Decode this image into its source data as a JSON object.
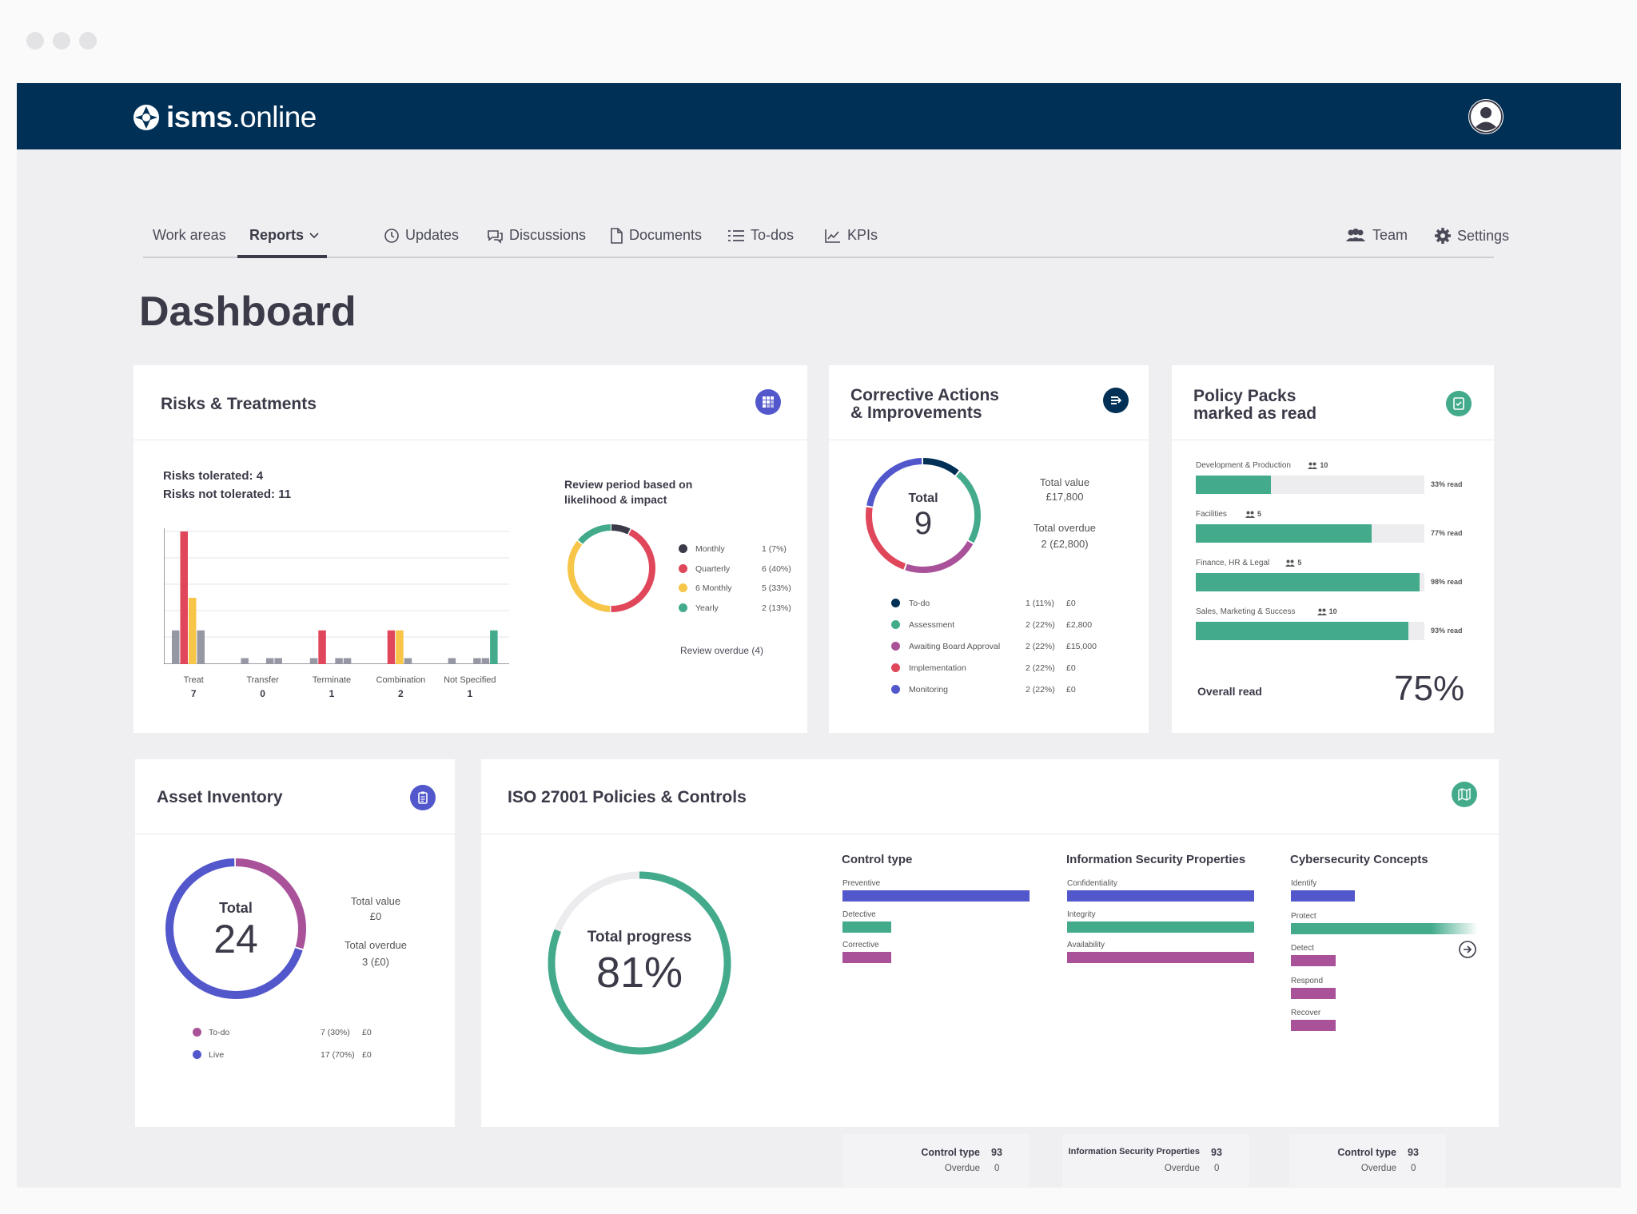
{
  "app": {
    "logo_bold": "isms",
    "logo_light": ".online"
  },
  "nav": {
    "work_areas": "Work areas",
    "reports": "Reports",
    "updates": "Updates",
    "discussions": "Discussions",
    "documents": "Documents",
    "todos": "To-dos",
    "kpis": "KPIs",
    "team": "Team",
    "settings": "Settings"
  },
  "page_title": "Dashboard",
  "colors": {
    "navy": "#013056",
    "green": "#43ab8c",
    "blue": "#5257cb",
    "purple": "#a9529a",
    "red": "#e0475a",
    "yellow": "#f7c548",
    "dark": "#3a3a48",
    "gray": "#9598a3"
  },
  "risks": {
    "title": "Risks & Treatments",
    "tolerated": "Risks tolerated: 4",
    "not_tolerated": "Risks not tolerated: 11",
    "chart_data": {
      "type": "bar",
      "categories": [
        "Treat",
        "Transfer",
        "Terminate",
        "Combination",
        "Not Specified"
      ],
      "totals": [
        "7",
        "0",
        "1",
        "2",
        "1"
      ],
      "series": [
        {
          "color": "#9598a3",
          "values": [
            2.8,
            0.5,
            0.5,
            0,
            0.5
          ]
        },
        {
          "color": "#e0475a",
          "values": [
            11,
            0,
            2.8,
            2.8,
            0
          ]
        },
        {
          "color": "#f7c548",
          "values": [
            5.5,
            0,
            0,
            2.8,
            0
          ]
        },
        {
          "color": "#9598a3",
          "values": [
            2.8,
            0.5,
            0.5,
            0.5,
            0.5
          ]
        },
        {
          "color": "#9598a3",
          "values": [
            0,
            0.5,
            0.5,
            0,
            0.5
          ]
        },
        {
          "color": "#43ab8c",
          "values": [
            0,
            0,
            0,
            0,
            2.8
          ]
        }
      ],
      "ylim": [
        0,
        11
      ]
    },
    "review_title_1": "Review period based on",
    "review_title_2": "likelihood & impact",
    "review_donut": [
      {
        "label": "Monthly",
        "value": "1 (7%)",
        "pct": 7,
        "color": "#3a3a48"
      },
      {
        "label": "Quarterly",
        "value": "6 (40%)",
        "pct": 40,
        "color": "#e0475a"
      },
      {
        "label": "6 Monthly",
        "value": "5 (33%)",
        "pct": 33,
        "color": "#f7c548"
      },
      {
        "label": "Yearly",
        "value": "2 (13%)",
        "pct": 13,
        "color": "#43ab8c"
      }
    ],
    "review_overdue": "Review overdue (4)"
  },
  "corrective": {
    "title_1": "Corrective Actions",
    "title_2": "& Improvements",
    "total_label": "Total",
    "total": "9",
    "total_value_label": "Total value",
    "total_value": "£17,800",
    "total_overdue_label": "Total overdue",
    "total_overdue": "2 (£2,800)",
    "rows": [
      {
        "label": "To-do",
        "count": "1 (11%)",
        "value": "£0",
        "pct": 11,
        "color": "#013056"
      },
      {
        "label": "Assessment",
        "count": "2 (22%)",
        "value": "£2,800",
        "pct": 22,
        "color": "#43ab8c"
      },
      {
        "label": "Awaiting Board Approval",
        "count": "2 (22%)",
        "value": "£15,000",
        "pct": 22,
        "color": "#a9529a"
      },
      {
        "label": "Implementation",
        "count": "2 (22%)",
        "value": "£0",
        "pct": 22,
        "color": "#e0475a"
      },
      {
        "label": "Monitoring",
        "count": "2 (22%)",
        "value": "£0",
        "pct": 22,
        "color": "#5257cb"
      }
    ]
  },
  "policy": {
    "title_1": "Policy Packs",
    "title_2": "marked as read",
    "items": [
      {
        "name": "Development & Production",
        "count": "10",
        "read": "33% read",
        "pct": 0.33
      },
      {
        "name": "Facilities",
        "count": "5",
        "read": "77% read",
        "pct": 0.77
      },
      {
        "name": "Finance, HR & Legal",
        "count": "5",
        "read": "98% read",
        "pct": 0.98
      },
      {
        "name": "Sales, Marketing & Success",
        "count": "10",
        "read": "93% read",
        "pct": 0.93
      }
    ],
    "overall_label": "Overall read",
    "overall_value": "75%"
  },
  "asset": {
    "title": "Asset Inventory",
    "total_label": "Total",
    "total": "24",
    "total_value_label": "Total value",
    "total_value": "£0",
    "total_overdue_label": "Total overdue",
    "total_overdue": "3 (£0)",
    "rows": [
      {
        "label": "To-do",
        "count": "7 (30%)",
        "value": "£0",
        "pct": 30,
        "color": "#a9529a"
      },
      {
        "label": "Live",
        "count": "17 (70%)",
        "value": "£0",
        "pct": 70,
        "color": "#5257cb"
      }
    ]
  },
  "iso": {
    "title": "ISO 27001 Policies & Controls",
    "progress_label": "Total progress",
    "progress_value": "81%",
    "progress_pct": 81,
    "columns": [
      {
        "title": "Control type",
        "bars": [
          {
            "label": "Preventive",
            "pct": 1.0,
            "color": "#5257cb"
          },
          {
            "label": "Detective",
            "pct": 0.26,
            "color": "#43ab8c"
          },
          {
            "label": "Corrective",
            "pct": 0.26,
            "color": "#a9529a"
          }
        ],
        "footer_label": "Control type",
        "footer_value": "93",
        "overdue_label": "Overdue",
        "overdue_value": "0"
      },
      {
        "title": "Information Security Properties",
        "bars": [
          {
            "label": "Confidentiality",
            "pct": 1.0,
            "color": "#5257cb"
          },
          {
            "label": "Integrity",
            "pct": 1.0,
            "color": "#43ab8c"
          },
          {
            "label": "Availability",
            "pct": 1.0,
            "color": "#a9529a"
          }
        ],
        "footer_label": "Information Security Properties",
        "footer_value": "93",
        "overdue_label": "Overdue",
        "overdue_value": "0"
      },
      {
        "title": "Cybersecurity Concepts",
        "bars": [
          {
            "label": "Identify",
            "pct": 0.34,
            "color": "#5257cb"
          },
          {
            "label": "Protect",
            "pct": 1.0,
            "color": "#43ab8c"
          },
          {
            "label": "Detect",
            "pct": 0.24,
            "color": "#a9529a"
          },
          {
            "label": "Respond",
            "pct": 0.24,
            "color": "#a9529a"
          },
          {
            "label": "Recover",
            "pct": 0.24,
            "color": "#a9529a"
          }
        ],
        "footer_label": "Control type",
        "footer_value": "93",
        "overdue_label": "Overdue",
        "overdue_value": "0"
      }
    ]
  }
}
